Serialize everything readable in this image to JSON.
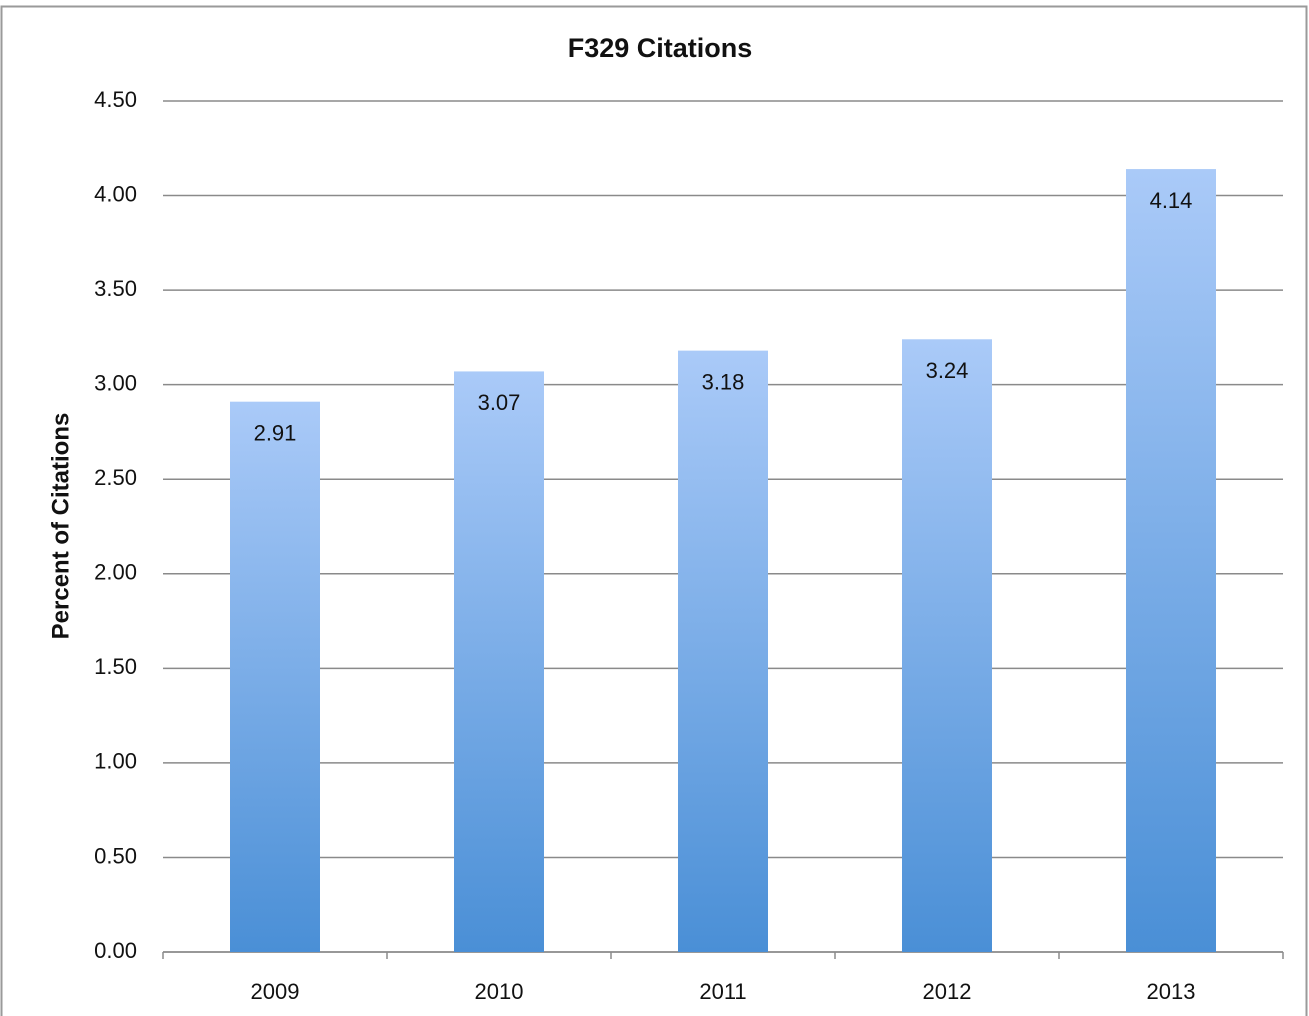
{
  "chart_data": {
    "type": "bar",
    "title": "F329 Citations",
    "y_label": "Percent of Citations",
    "categories": [
      "2009",
      "2010",
      "2011",
      "2012",
      "2013"
    ],
    "values": [
      2.91,
      3.07,
      3.18,
      3.24,
      4.14
    ],
    "color": "#4a8fd6",
    "ylim": [
      0,
      4.5
    ],
    "yticks": [
      {
        "value": 0,
        "label": "0.00"
      },
      {
        "value": 0.5,
        "label": "0.50"
      },
      {
        "value": 1,
        "label": "1.00"
      },
      {
        "value": 1.5,
        "label": "1.50"
      },
      {
        "value": 2,
        "label": "2.00"
      },
      {
        "value": 2.5,
        "label": "2.50"
      },
      {
        "value": 3,
        "label": "3.00"
      },
      {
        "value": 3.5,
        "label": "3.50"
      },
      {
        "value": 4,
        "label": "4.00"
      },
      {
        "value": 4.5,
        "label": "4.50"
      }
    ],
    "grid": true
  }
}
